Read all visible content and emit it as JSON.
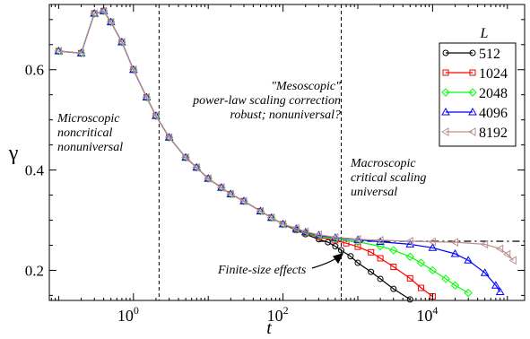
{
  "chart_data": {
    "type": "line",
    "xscale": "log",
    "xlim": [
      0.075,
      170000
    ],
    "ylim": [
      0.14,
      0.73
    ],
    "xlabel": "t",
    "ylabel": "γ",
    "xticks": [
      {
        "v": 1,
        "base": "10",
        "exp": "0"
      },
      {
        "v": 100,
        "base": "10",
        "exp": "2"
      },
      {
        "v": 10000,
        "base": "10",
        "exp": "4"
      }
    ],
    "yticks": [
      0.2,
      0.4,
      0.6
    ],
    "vlines": [
      2.2,
      600
    ],
    "hline": 0.258,
    "legend_title": "L",
    "series": [
      {
        "name": "512",
        "color": "#000000",
        "marker": "circle",
        "points": [
          [
            0.1,
            0.637
          ],
          [
            0.2,
            0.633
          ],
          [
            0.3,
            0.712
          ],
          [
            0.4,
            0.717
          ],
          [
            0.5,
            0.695
          ],
          [
            0.7,
            0.655
          ],
          [
            1,
            0.6
          ],
          [
            1.5,
            0.545
          ],
          [
            2,
            0.508
          ],
          [
            3,
            0.465
          ],
          [
            5,
            0.425
          ],
          [
            7,
            0.405
          ],
          [
            10,
            0.383
          ],
          [
            15,
            0.365
          ],
          [
            20,
            0.352
          ],
          [
            30,
            0.338
          ],
          [
            50,
            0.318
          ],
          [
            70,
            0.305
          ],
          [
            100,
            0.292
          ],
          [
            150,
            0.28
          ],
          [
            200,
            0.272
          ],
          [
            300,
            0.262
          ],
          [
            400,
            0.256
          ],
          [
            500,
            0.248
          ],
          [
            600,
            0.24
          ],
          [
            800,
            0.228
          ],
          [
            1000,
            0.215
          ],
          [
            1500,
            0.197
          ],
          [
            2000,
            0.183
          ],
          [
            3000,
            0.163
          ],
          [
            5000,
            0.142
          ]
        ]
      },
      {
        "name": "1024",
        "color": "#ff0000",
        "marker": "square",
        "points": [
          [
            0.1,
            0.637
          ],
          [
            0.2,
            0.633
          ],
          [
            0.3,
            0.712
          ],
          [
            0.4,
            0.717
          ],
          [
            0.5,
            0.695
          ],
          [
            0.7,
            0.655
          ],
          [
            1,
            0.6
          ],
          [
            1.5,
            0.545
          ],
          [
            2,
            0.508
          ],
          [
            3,
            0.465
          ],
          [
            5,
            0.425
          ],
          [
            7,
            0.405
          ],
          [
            10,
            0.383
          ],
          [
            15,
            0.365
          ],
          [
            20,
            0.352
          ],
          [
            30,
            0.338
          ],
          [
            50,
            0.318
          ],
          [
            70,
            0.305
          ],
          [
            100,
            0.292
          ],
          [
            150,
            0.281
          ],
          [
            200,
            0.274
          ],
          [
            300,
            0.266
          ],
          [
            500,
            0.26
          ],
          [
            700,
            0.254
          ],
          [
            1000,
            0.247
          ],
          [
            1500,
            0.236
          ],
          [
            2000,
            0.224
          ],
          [
            3000,
            0.207
          ],
          [
            5000,
            0.184
          ],
          [
            7000,
            0.165
          ],
          [
            10000,
            0.148
          ]
        ]
      },
      {
        "name": "2048",
        "color": "#00ff00",
        "marker": "diamond",
        "points": [
          [
            0.1,
            0.637
          ],
          [
            0.2,
            0.633
          ],
          [
            0.3,
            0.712
          ],
          [
            0.4,
            0.717
          ],
          [
            0.5,
            0.695
          ],
          [
            0.7,
            0.655
          ],
          [
            1,
            0.6
          ],
          [
            1.5,
            0.545
          ],
          [
            2,
            0.508
          ],
          [
            3,
            0.465
          ],
          [
            5,
            0.425
          ],
          [
            7,
            0.405
          ],
          [
            10,
            0.383
          ],
          [
            15,
            0.365
          ],
          [
            20,
            0.352
          ],
          [
            30,
            0.338
          ],
          [
            50,
            0.318
          ],
          [
            70,
            0.305
          ],
          [
            100,
            0.292
          ],
          [
            150,
            0.282
          ],
          [
            200,
            0.275
          ],
          [
            300,
            0.268
          ],
          [
            500,
            0.263
          ],
          [
            1000,
            0.257
          ],
          [
            2000,
            0.248
          ],
          [
            3000,
            0.24
          ],
          [
            5000,
            0.227
          ],
          [
            7000,
            0.215
          ],
          [
            10000,
            0.2
          ],
          [
            15000,
            0.183
          ],
          [
            20000,
            0.17
          ],
          [
            30000,
            0.155
          ]
        ]
      },
      {
        "name": "4096",
        "color": "#0000ff",
        "marker": "triangle",
        "points": [
          [
            0.1,
            0.637
          ],
          [
            0.2,
            0.633
          ],
          [
            0.3,
            0.712
          ],
          [
            0.4,
            0.717
          ],
          [
            0.5,
            0.695
          ],
          [
            0.7,
            0.655
          ],
          [
            1,
            0.6
          ],
          [
            1.5,
            0.545
          ],
          [
            2,
            0.508
          ],
          [
            3,
            0.465
          ],
          [
            5,
            0.425
          ],
          [
            7,
            0.405
          ],
          [
            10,
            0.383
          ],
          [
            15,
            0.365
          ],
          [
            20,
            0.352
          ],
          [
            30,
            0.338
          ],
          [
            50,
            0.318
          ],
          [
            70,
            0.305
          ],
          [
            100,
            0.292
          ],
          [
            150,
            0.283
          ],
          [
            200,
            0.276
          ],
          [
            300,
            0.27
          ],
          [
            500,
            0.265
          ],
          [
            1000,
            0.261
          ],
          [
            2000,
            0.257
          ],
          [
            5000,
            0.252
          ],
          [
            10000,
            0.245
          ],
          [
            20000,
            0.233
          ],
          [
            30000,
            0.22
          ],
          [
            50000,
            0.195
          ],
          [
            70000,
            0.17
          ],
          [
            80000,
            0.157
          ]
        ]
      },
      {
        "name": "8192",
        "color": "#bc8f8f",
        "marker": "left-triangle",
        "points": [
          [
            0.1,
            0.637
          ],
          [
            0.2,
            0.633
          ],
          [
            0.3,
            0.712
          ],
          [
            0.4,
            0.717
          ],
          [
            0.5,
            0.695
          ],
          [
            0.7,
            0.655
          ],
          [
            1,
            0.6
          ],
          [
            1.5,
            0.545
          ],
          [
            2,
            0.508
          ],
          [
            3,
            0.465
          ],
          [
            5,
            0.425
          ],
          [
            7,
            0.405
          ],
          [
            10,
            0.383
          ],
          [
            15,
            0.365
          ],
          [
            20,
            0.352
          ],
          [
            30,
            0.338
          ],
          [
            50,
            0.318
          ],
          [
            70,
            0.305
          ],
          [
            100,
            0.292
          ],
          [
            150,
            0.284
          ],
          [
            200,
            0.277
          ],
          [
            300,
            0.271
          ],
          [
            500,
            0.266
          ],
          [
            1000,
            0.262
          ],
          [
            2000,
            0.26
          ],
          [
            5000,
            0.258
          ],
          [
            10000,
            0.257
          ],
          [
            20000,
            0.256
          ],
          [
            50000,
            0.252
          ],
          [
            80000,
            0.243
          ],
          [
            100000,
            0.232
          ],
          [
            120000,
            0.22
          ]
        ]
      }
    ],
    "annotations": {
      "micro": [
        "Microscopic",
        "noncritical",
        "nonuniversal"
      ],
      "meso": [
        "\"Mesoscopic\"",
        "power-law scaling correction",
        "robust; nonuniversal?"
      ],
      "macro": [
        "Macroscopic",
        "critical scaling",
        "universal"
      ],
      "finite": "Finite-size effects"
    }
  }
}
